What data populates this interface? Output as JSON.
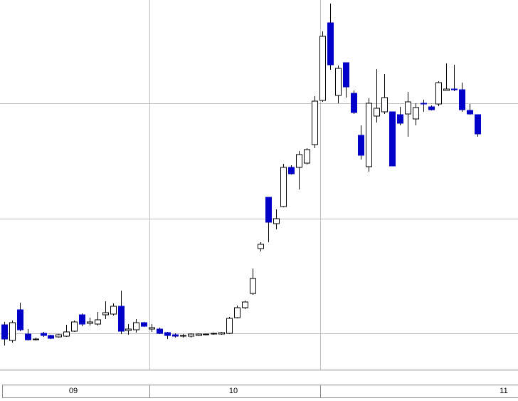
{
  "chart_data": {
    "type": "candlestick",
    "ylim": [
      0,
      520
    ],
    "ygrid": [
      52,
      213,
      375
    ],
    "up_color": "#ffffff",
    "down_color": "#0000c8",
    "month_labels": [
      "09",
      "10",
      "11"
    ],
    "open": [
      64,
      42,
      85,
      51,
      44,
      52,
      49,
      47,
      48,
      55,
      78,
      66,
      65,
      78,
      79,
      90,
      56,
      57,
      67,
      58,
      58,
      53,
      50,
      48,
      48,
      49,
      50,
      51,
      51,
      52,
      74,
      88,
      108,
      171,
      243,
      206,
      230,
      285,
      285,
      291,
      317,
      379,
      488,
      386,
      432,
      389,
      330,
      286,
      357,
      363,
      363,
      359,
      360,
      353,
      375,
      370,
      374,
      393,
      395,
      394,
      365,
      359
    ],
    "high": [
      68,
      70,
      95,
      58,
      46,
      54,
      50,
      51,
      64,
      70,
      80,
      74,
      82,
      97,
      94,
      112,
      65,
      72,
      68,
      65,
      60,
      54,
      52,
      51,
      52,
      52,
      52,
      53,
      54,
      75,
      91,
      98,
      143,
      180,
      243,
      226,
      290,
      288,
      308,
      312,
      385,
      476,
      515,
      428,
      432,
      393,
      344,
      382,
      423,
      416,
      363,
      370,
      391,
      375,
      380,
      372,
      406,
      431,
      429,
      404,
      374,
      359
    ],
    "low": [
      35,
      39,
      55,
      42,
      42,
      47,
      44,
      46,
      47,
      54,
      62,
      63,
      63,
      72,
      77,
      51,
      50,
      53,
      61,
      54,
      51,
      44,
      46,
      46,
      46,
      48,
      49,
      50,
      50,
      51,
      73,
      86,
      106,
      167,
      180,
      198,
      229,
      275,
      254,
      289,
      312,
      377,
      422,
      375,
      383,
      360,
      296,
      279,
      348,
      360,
      287,
      344,
      328,
      344,
      363,
      365,
      371,
      393,
      392,
      363,
      359,
      328
    ],
    "close": [
      44,
      67,
      57,
      43,
      44,
      49,
      45,
      50,
      54,
      68,
      65,
      68,
      71,
      81,
      90,
      55,
      58,
      67,
      62,
      60,
      52,
      49,
      48,
      49,
      51,
      51,
      51,
      52,
      53,
      73,
      88,
      96,
      129,
      177,
      208,
      213,
      285,
      276,
      303,
      310,
      378,
      469,
      429,
      424,
      398,
      362,
      302,
      375,
      368,
      383,
      287,
      347,
      377,
      369,
      374,
      366,
      404,
      395,
      394,
      366,
      360,
      332
    ]
  }
}
